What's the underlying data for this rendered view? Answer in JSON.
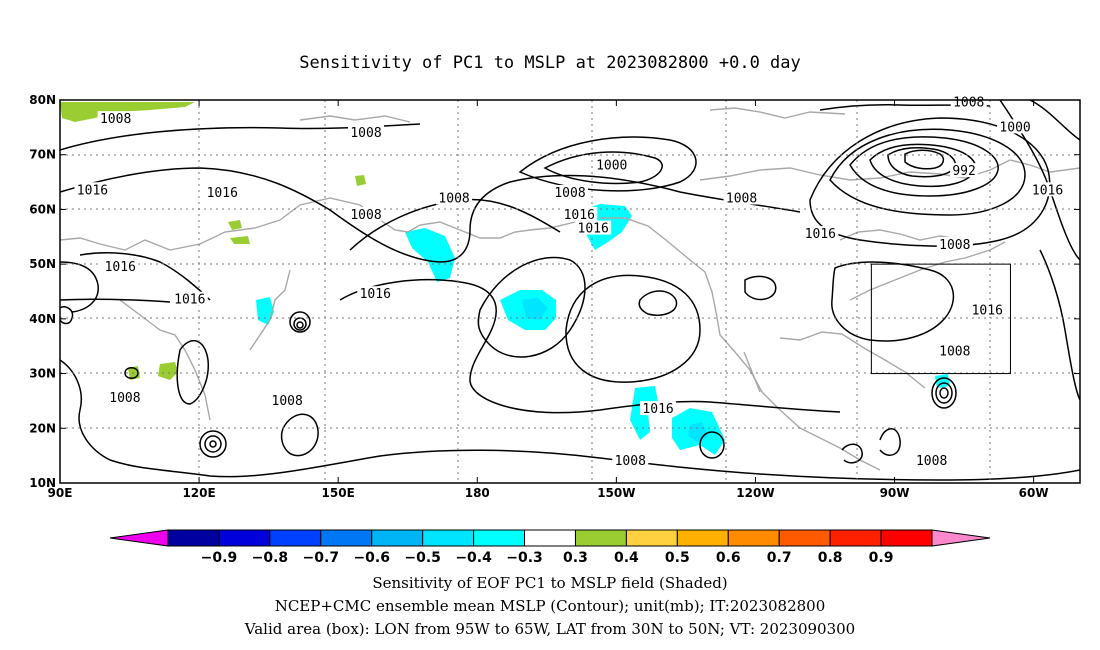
{
  "map_title": "Sensitivity of PC1 to MSLP at 2023082800 +0.0 day",
  "axes": {
    "lat_labels": [
      "80N",
      "70N",
      "60N",
      "50N",
      "40N",
      "30N",
      "20N",
      "10N"
    ],
    "lon_labels": [
      "90E",
      "120E",
      "150E",
      "180",
      "150W",
      "120W",
      "90W",
      "60W"
    ],
    "lon_range": [
      90,
      310
    ],
    "lat_range": [
      10,
      80
    ],
    "grid": "dotted"
  },
  "contour_labels": [
    {
      "text": "1008",
      "lon": 102,
      "lat": 76.5
    },
    {
      "text": "1008",
      "lon": 156,
      "lat": 74
    },
    {
      "text": "1016",
      "lon": 97,
      "lat": 63.5
    },
    {
      "text": "1016",
      "lon": 125,
      "lat": 63
    },
    {
      "text": "1008",
      "lon": 156,
      "lat": 59
    },
    {
      "text": "1008",
      "lon": 175,
      "lat": 62
    },
    {
      "text": "1000",
      "lon": 209,
      "lat": 68
    },
    {
      "text": "1008",
      "lon": 200,
      "lat": 63
    },
    {
      "text": "1016",
      "lon": 202,
      "lat": 59
    },
    {
      "text": "1016",
      "lon": 205,
      "lat": 56.5
    },
    {
      "text": "1008",
      "lon": 237,
      "lat": 62
    },
    {
      "text": "1016",
      "lon": 254,
      "lat": 55.5
    },
    {
      "text": "1008",
      "lon": 286,
      "lat": 79.5
    },
    {
      "text": "1000",
      "lon": 296,
      "lat": 75
    },
    {
      "text": "992",
      "lon": 285,
      "lat": 67
    },
    {
      "text": "1016",
      "lon": 303,
      "lat": 63.5
    },
    {
      "text": "1008",
      "lon": 283,
      "lat": 53.5
    },
    {
      "text": "1016",
      "lon": 103,
      "lat": 49.5
    },
    {
      "text": "1016",
      "lon": 118,
      "lat": 43.5
    },
    {
      "text": "1016",
      "lon": 158,
      "lat": 44.5
    },
    {
      "text": "1016",
      "lon": 290,
      "lat": 41.5
    },
    {
      "text": "1008",
      "lon": 283,
      "lat": 34
    },
    {
      "text": "1008",
      "lon": 104,
      "lat": 25.5
    },
    {
      "text": "1008",
      "lon": 139,
      "lat": 25
    },
    {
      "text": "1016",
      "lon": 219,
      "lat": 23.5
    },
    {
      "text": "1008",
      "lon": 213,
      "lat": 14
    },
    {
      "text": "1008",
      "lon": 278,
      "lat": 14
    }
  ],
  "colorbar": {
    "colors": [
      "#ee00ee",
      "#0000a0",
      "#0000dc",
      "#0040ff",
      "#0078f5",
      "#00b5f5",
      "#00e5ff",
      "#00ffff",
      "#ffffff",
      "#9acd32",
      "#ffd040",
      "#ffb000",
      "#ff8c00",
      "#ff5a00",
      "#ff2000",
      "#ff0000",
      "#ff88cc"
    ],
    "labels": [
      "-0.9",
      "-0.8",
      "-0.7",
      "-0.6",
      "-0.5",
      "-0.4",
      "-0.3",
      "0.3",
      "0.4",
      "0.5",
      "0.6",
      "0.7",
      "0.8",
      "0.9"
    ]
  },
  "caption_lines": [
    "Sensitivity of EOF PC1 to MSLP field (Shaded)",
    "NCEP+CMC ensemble mean MSLP (Contour); unit(mb); IT:2023082800",
    "Valid area (box): LON from 95W to 65W, LAT from 30N to 50N; VT: 2023090300"
  ],
  "valid_box": {
    "lon": [
      265,
      295
    ],
    "lat": [
      30,
      50
    ]
  }
}
